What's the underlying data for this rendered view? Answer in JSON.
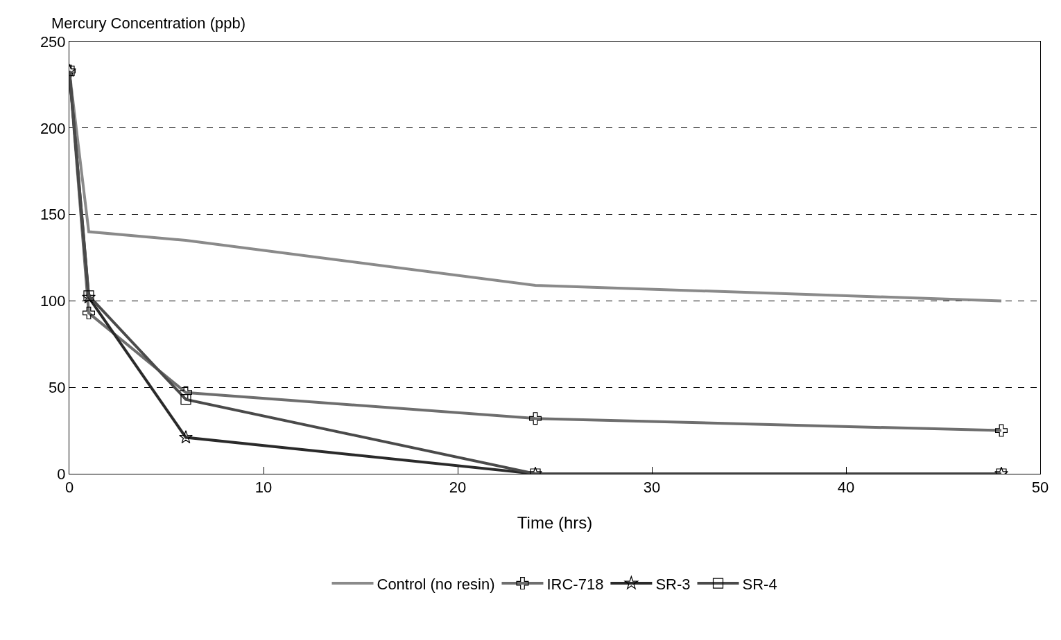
{
  "chart_data": {
    "type": "line",
    "ylabel": "Mercury Concentration (ppb)",
    "xlabel": "Time (hrs)",
    "x": [
      0,
      1,
      6,
      24,
      48
    ],
    "series": [
      {
        "name": "Control (no resin)",
        "color": "#8a8a8a",
        "marker": "none",
        "values": [
          233,
          140,
          135,
          109,
          100
        ]
      },
      {
        "name": "IRC-718",
        "color": "#6e6e6e",
        "marker": "cross",
        "values": [
          233,
          93,
          47,
          32,
          25
        ]
      },
      {
        "name": "SR-3",
        "color": "#2a2a2a",
        "marker": "star",
        "values": [
          233,
          102,
          21,
          0,
          0
        ]
      },
      {
        "name": "SR-4",
        "color": "#4a4a4a",
        "marker": "square",
        "values": [
          233,
          103,
          43,
          0,
          0
        ]
      }
    ],
    "xlim": [
      0,
      50
    ],
    "xticks": [
      0,
      10,
      20,
      30,
      40,
      50
    ],
    "ylim": [
      0,
      250
    ],
    "yticks": [
      0,
      50,
      100,
      150,
      200,
      250
    ],
    "grid": "y",
    "legend": "bottom",
    "line_style": "solid"
  }
}
